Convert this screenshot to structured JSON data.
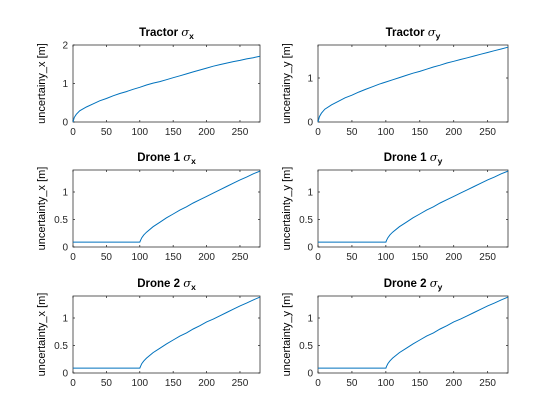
{
  "chart_data": [
    {
      "type": "line",
      "title": "Tractor",
      "title_symbol": "σ",
      "title_subscript": "x",
      "ylabel": "uncertainy_x [m]",
      "xlim": [
        0,
        280
      ],
      "ylim": [
        0,
        2
      ],
      "xticks": [
        0,
        50,
        100,
        150,
        200,
        250
      ],
      "yticks": [
        0,
        1,
        2
      ],
      "series": [
        {
          "color": "#0072BD",
          "x": [
            0,
            2,
            5,
            10,
            20,
            30,
            40,
            50,
            60,
            70,
            80,
            90,
            100,
            110,
            120,
            130,
            140,
            150,
            160,
            170,
            180,
            190,
            200,
            210,
            220,
            230,
            240,
            250,
            260,
            270,
            280
          ],
          "y": [
            0,
            0.12,
            0.2,
            0.29,
            0.39,
            0.47,
            0.55,
            0.61,
            0.68,
            0.74,
            0.79,
            0.85,
            0.9,
            0.96,
            1.01,
            1.05,
            1.1,
            1.15,
            1.2,
            1.25,
            1.3,
            1.35,
            1.4,
            1.45,
            1.49,
            1.53,
            1.57,
            1.6,
            1.64,
            1.67,
            1.71
          ]
        }
      ]
    },
    {
      "type": "line",
      "title": "Tractor",
      "title_symbol": "σ",
      "title_subscript": "y",
      "ylabel": "uncertainy_y [m]",
      "xlim": [
        0,
        280
      ],
      "ylim": [
        0,
        1.75
      ],
      "xticks": [
        0,
        50,
        100,
        150,
        200,
        250
      ],
      "yticks": [
        0,
        1
      ],
      "series": [
        {
          "color": "#0072BD",
          "x": [
            0,
            2,
            5,
            10,
            20,
            30,
            40,
            50,
            60,
            70,
            80,
            90,
            100,
            110,
            120,
            130,
            140,
            150,
            160,
            170,
            180,
            190,
            200,
            210,
            220,
            230,
            240,
            250,
            260,
            270,
            280
          ],
          "y": [
            0,
            0.12,
            0.2,
            0.29,
            0.39,
            0.47,
            0.55,
            0.61,
            0.68,
            0.74,
            0.8,
            0.86,
            0.91,
            0.96,
            1.01,
            1.06,
            1.11,
            1.15,
            1.2,
            1.25,
            1.29,
            1.34,
            1.38,
            1.42,
            1.46,
            1.5,
            1.54,
            1.58,
            1.62,
            1.66,
            1.7
          ]
        }
      ]
    },
    {
      "type": "line",
      "title": "Drone 1",
      "title_symbol": "σ",
      "title_subscript": "x",
      "ylabel": "uncertainty_x [m]",
      "xlim": [
        0,
        280
      ],
      "ylim": [
        0,
        1.4
      ],
      "xticks": [
        0,
        50,
        100,
        150,
        200,
        250
      ],
      "yticks": [
        0,
        0.5,
        1
      ],
      "series": [
        {
          "color": "#0072BD",
          "x": [
            0,
            50,
            100,
            101,
            103,
            106,
            110,
            120,
            130,
            140,
            150,
            160,
            170,
            180,
            190,
            200,
            210,
            220,
            230,
            240,
            250,
            260,
            270,
            280
          ],
          "y": [
            0.09,
            0.09,
            0.09,
            0.12,
            0.17,
            0.22,
            0.27,
            0.37,
            0.45,
            0.53,
            0.6,
            0.67,
            0.73,
            0.8,
            0.86,
            0.92,
            0.98,
            1.04,
            1.1,
            1.16,
            1.22,
            1.27,
            1.33,
            1.38
          ]
        }
      ]
    },
    {
      "type": "line",
      "title": "Drone 1",
      "title_symbol": "σ",
      "title_subscript": "y",
      "ylabel": "uncertainty_y [m]",
      "xlim": [
        0,
        280
      ],
      "ylim": [
        0,
        1.4
      ],
      "xticks": [
        0,
        50,
        100,
        150,
        200,
        250
      ],
      "yticks": [
        0,
        0.5,
        1
      ],
      "series": [
        {
          "color": "#0072BD",
          "x": [
            0,
            50,
            100,
            101,
            103,
            106,
            110,
            120,
            130,
            140,
            150,
            160,
            170,
            180,
            190,
            200,
            210,
            220,
            230,
            240,
            250,
            260,
            270,
            280
          ],
          "y": [
            0.09,
            0.09,
            0.09,
            0.12,
            0.17,
            0.22,
            0.27,
            0.37,
            0.45,
            0.53,
            0.6,
            0.67,
            0.73,
            0.8,
            0.86,
            0.92,
            0.98,
            1.04,
            1.1,
            1.16,
            1.22,
            1.27,
            1.33,
            1.38
          ]
        }
      ]
    },
    {
      "type": "line",
      "title": "Drone 2",
      "title_symbol": "σ",
      "title_subscript": "x",
      "ylabel": "uncertainty_x [m]",
      "xlim": [
        0,
        280
      ],
      "ylim": [
        0,
        1.4
      ],
      "xticks": [
        0,
        50,
        100,
        150,
        200,
        250
      ],
      "yticks": [
        0,
        0.5,
        1
      ],
      "series": [
        {
          "color": "#0072BD",
          "x": [
            0,
            50,
            100,
            101,
            103,
            106,
            110,
            120,
            130,
            140,
            150,
            160,
            170,
            180,
            190,
            200,
            210,
            220,
            230,
            240,
            250,
            260,
            270,
            280
          ],
          "y": [
            0.09,
            0.09,
            0.09,
            0.12,
            0.17,
            0.22,
            0.27,
            0.37,
            0.45,
            0.53,
            0.6,
            0.67,
            0.73,
            0.8,
            0.86,
            0.93,
            0.98,
            1.04,
            1.1,
            1.16,
            1.22,
            1.27,
            1.33,
            1.38
          ]
        }
      ]
    },
    {
      "type": "line",
      "title": "Drone 2",
      "title_symbol": "σ",
      "title_subscript": "y",
      "ylabel": "uncertainty_y [m]",
      "xlim": [
        0,
        280
      ],
      "ylim": [
        0,
        1.4
      ],
      "xticks": [
        0,
        50,
        100,
        150,
        200,
        250
      ],
      "yticks": [
        0,
        0.5,
        1
      ],
      "series": [
        {
          "color": "#0072BD",
          "x": [
            0,
            50,
            100,
            101,
            103,
            106,
            110,
            120,
            130,
            140,
            150,
            160,
            170,
            180,
            190,
            200,
            210,
            220,
            230,
            240,
            250,
            260,
            270,
            280
          ],
          "y": [
            0.09,
            0.09,
            0.09,
            0.12,
            0.17,
            0.22,
            0.27,
            0.37,
            0.45,
            0.53,
            0.6,
            0.67,
            0.73,
            0.8,
            0.86,
            0.93,
            0.98,
            1.04,
            1.1,
            1.16,
            1.22,
            1.27,
            1.33,
            1.38
          ]
        }
      ]
    }
  ]
}
